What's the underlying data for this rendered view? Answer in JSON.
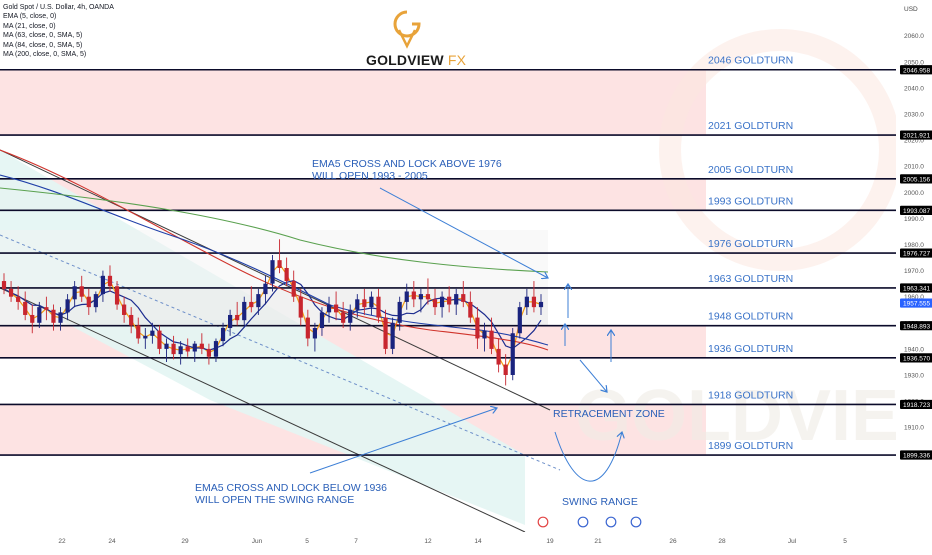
{
  "header": {
    "legend_lines": [
      "Gold Spot / U.S. Dollar, 4h, OANDA",
      "EMA (5, close, 0)",
      "MA (21, close, 0)",
      "MA (63, close, 0, SMA, 5)",
      "MA (84, close, 0, SMA, 5)",
      "MA (200, close, 0, SMA, 5)"
    ],
    "brand_main": "GOLDVIEW",
    "brand_fx": "FX",
    "currency": "USD"
  },
  "colors": {
    "band_red": "#fde3e3",
    "band_teal": "#e3f5f3",
    "band_grey": "#e6e6e6",
    "level_line": "#0b0b2a",
    "goldturn_text": "#3a73c8",
    "annotation_text": "#2a5fb8",
    "arrow": "#3d7fd6",
    "candle_up": "#1a237e",
    "candle_down": "#c8262f",
    "ema5": "#f39c12",
    "ma21": "#1c2c8f",
    "ma63": "#d0342c",
    "ma84": "#1f3fa8",
    "ma200": "#5aa14f",
    "logo_gold": "#e8a33a"
  },
  "chart_data": {
    "type": "candlestick",
    "title": "Gold Spot / U.S. Dollar, 4h, OANDA",
    "ylabel": "USD",
    "ylim": [
      1895,
      2068
    ],
    "x_tick_labels": [
      "22",
      "24",
      "29",
      "Jun",
      "5",
      "7",
      "12",
      "14",
      "19",
      "21",
      "26",
      "28",
      "Jul",
      "5"
    ],
    "y_tick_labels": [
      1910,
      1920,
      1930,
      1940,
      1950,
      1960,
      1970,
      1980,
      1990,
      2000,
      2010,
      2020,
      2030,
      2040,
      2050,
      2060
    ],
    "highlighted_prices": [
      "2046.958",
      "2021.921",
      "2005.156",
      "1993.087",
      "1976.727",
      "1963.341",
      "1957.555",
      "1948.893",
      "1936.570",
      "1918.723",
      "1899.336"
    ],
    "last_price": "1957.555",
    "levels": [
      {
        "price": 2046.958,
        "label": "2046 GOLDTURN"
      },
      {
        "price": 2021.921,
        "label": "2021 GOLDTURN"
      },
      {
        "price": 2005.156,
        "label": "2005 GOLDTURN"
      },
      {
        "price": 1993.087,
        "label": "1993 GOLDTURN"
      },
      {
        "price": 1976.727,
        "label": "1976 GOLDTURN"
      },
      {
        "price": 1963.341,
        "label": "1963 GOLDTURN"
      },
      {
        "price": 1948.893,
        "label": "1948 GOLDTURN"
      },
      {
        "price": 1936.57,
        "label": "1936 GOLDTURN"
      },
      {
        "price": 1918.723,
        "label": "1918 GOLDTURN"
      },
      {
        "price": 1899.336,
        "label": "1899 GOLDTURN"
      }
    ],
    "zones": [
      {
        "from": 2021.921,
        "to": 2046.958,
        "kind": "red"
      },
      {
        "from": 1993.087,
        "to": 2005.156,
        "kind": "red"
      },
      {
        "from": 1936.57,
        "to": 1948.893,
        "kind": "red"
      },
      {
        "from": 1899.336,
        "to": 1918.723,
        "kind": "red"
      }
    ],
    "annotations": [
      {
        "lines": [
          "EMA5 CROSS AND LOCK ABOVE 1976",
          "WILL OPEN 1993 - 2005"
        ]
      },
      {
        "lines": [
          "EMA5 CROSS AND LOCK BELOW 1936",
          "WILL OPEN THE SWING RANGE"
        ]
      },
      {
        "lines": [
          "RETRACEMENT ZONE"
        ]
      },
      {
        "lines": [
          "SWING RANGE"
        ]
      }
    ],
    "candles": [
      [
        1966,
        1969,
        1961,
        1963
      ],
      [
        1963,
        1966,
        1958,
        1960
      ],
      [
        1960,
        1964,
        1955,
        1958
      ],
      [
        1958,
        1962,
        1951,
        1953
      ],
      [
        1953,
        1957,
        1946,
        1950
      ],
      [
        1950,
        1958,
        1948,
        1956
      ],
      [
        1956,
        1960,
        1951,
        1955
      ],
      [
        1955,
        1957,
        1947,
        1950
      ],
      [
        1950,
        1956,
        1947,
        1954
      ],
      [
        1954,
        1961,
        1951,
        1959
      ],
      [
        1959,
        1966,
        1956,
        1964
      ],
      [
        1964,
        1968,
        1958,
        1960
      ],
      [
        1960,
        1963,
        1953,
        1956
      ],
      [
        1956,
        1962,
        1954,
        1961
      ],
      [
        1961,
        1970,
        1958,
        1968
      ],
      [
        1968,
        1972,
        1962,
        1964
      ],
      [
        1964,
        1966,
        1955,
        1957
      ],
      [
        1957,
        1960,
        1950,
        1953
      ],
      [
        1953,
        1956,
        1946,
        1949
      ],
      [
        1949,
        1952,
        1942,
        1944
      ],
      [
        1944,
        1948,
        1940,
        1945
      ],
      [
        1945,
        1950,
        1942,
        1947
      ],
      [
        1947,
        1949,
        1938,
        1940
      ],
      [
        1940,
        1944,
        1935,
        1942
      ],
      [
        1942,
        1945,
        1936,
        1938
      ],
      [
        1938,
        1943,
        1934,
        1941
      ],
      [
        1941,
        1944,
        1937,
        1939
      ],
      [
        1939,
        1943,
        1935,
        1942
      ],
      [
        1942,
        1946,
        1938,
        1940
      ],
      [
        1940,
        1942,
        1934,
        1937
      ],
      [
        1937,
        1944,
        1935,
        1943
      ],
      [
        1943,
        1950,
        1941,
        1948
      ],
      [
        1948,
        1955,
        1945,
        1953
      ],
      [
        1953,
        1958,
        1949,
        1951
      ],
      [
        1951,
        1960,
        1949,
        1958
      ],
      [
        1958,
        1964,
        1954,
        1956
      ],
      [
        1956,
        1963,
        1953,
        1961
      ],
      [
        1961,
        1968,
        1957,
        1965
      ],
      [
        1965,
        1976,
        1962,
        1974
      ],
      [
        1974,
        1982,
        1969,
        1971
      ],
      [
        1971,
        1975,
        1964,
        1966
      ],
      [
        1966,
        1970,
        1958,
        1960
      ],
      [
        1960,
        1963,
        1949,
        1952
      ],
      [
        1952,
        1955,
        1941,
        1944
      ],
      [
        1944,
        1950,
        1939,
        1948
      ],
      [
        1948,
        1956,
        1945,
        1954
      ],
      [
        1954,
        1960,
        1950,
        1957
      ],
      [
        1957,
        1962,
        1951,
        1954
      ],
      [
        1954,
        1958,
        1948,
        1950
      ],
      [
        1950,
        1957,
        1947,
        1955
      ],
      [
        1955,
        1961,
        1952,
        1959
      ],
      [
        1959,
        1963,
        1953,
        1956
      ],
      [
        1956,
        1962,
        1953,
        1960
      ],
      [
        1960,
        1963,
        1950,
        1952
      ],
      [
        1952,
        1955,
        1938,
        1940
      ],
      [
        1940,
        1952,
        1938,
        1950
      ],
      [
        1950,
        1960,
        1947,
        1958
      ],
      [
        1958,
        1965,
        1955,
        1962
      ],
      [
        1962,
        1966,
        1956,
        1959
      ],
      [
        1959,
        1963,
        1954,
        1961
      ],
      [
        1961,
        1967,
        1957,
        1959
      ],
      [
        1959,
        1963,
        1953,
        1956
      ],
      [
        1956,
        1962,
        1952,
        1960
      ],
      [
        1960,
        1964,
        1954,
        1957
      ],
      [
        1957,
        1963,
        1953,
        1961
      ],
      [
        1961,
        1966,
        1956,
        1958
      ],
      [
        1958,
        1962,
        1950,
        1952
      ],
      [
        1952,
        1956,
        1940,
        1944
      ],
      [
        1944,
        1950,
        1939,
        1947
      ],
      [
        1947,
        1952,
        1938,
        1940
      ],
      [
        1940,
        1944,
        1931,
        1934
      ],
      [
        1934,
        1938,
        1926,
        1930
      ],
      [
        1930,
        1948,
        1928,
        1946
      ],
      [
        1946,
        1958,
        1944,
        1956
      ],
      [
        1956,
        1963,
        1953,
        1960
      ],
      [
        1960,
        1966,
        1954,
        1956
      ],
      [
        1956,
        1961,
        1953,
        1958
      ]
    ],
    "series": [
      {
        "name": "EMA (5, close, 0)"
      },
      {
        "name": "MA (21, close, 0)"
      },
      {
        "name": "MA (63, close, 0, SMA, 5)"
      },
      {
        "name": "MA (84, close, 0, SMA, 5)"
      },
      {
        "name": "MA (200, close, 0, SMA, 5)"
      }
    ]
  }
}
